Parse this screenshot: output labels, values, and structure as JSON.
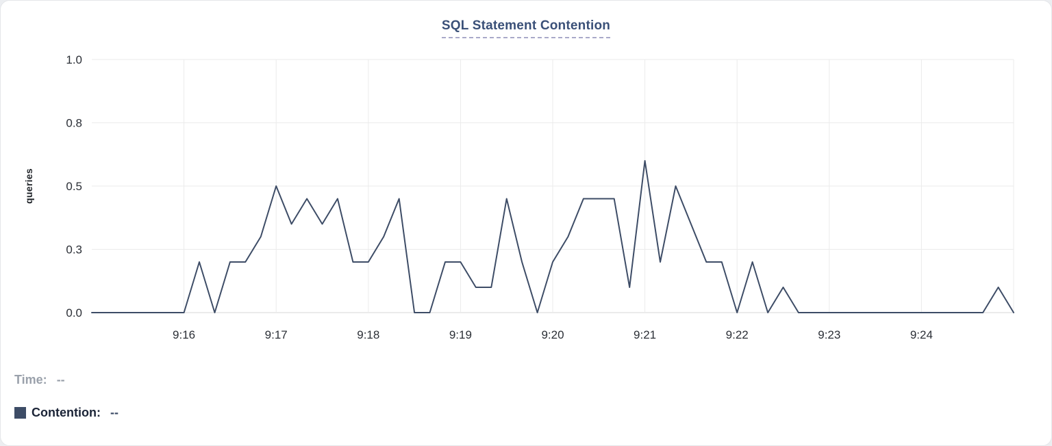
{
  "title": "SQL Statement Contention",
  "colors": {
    "line": "#3d4c66",
    "title": "#3a5078",
    "grid": "#ebebeb",
    "baseline": "#d7d7d7",
    "axis_text": "#2b2f36",
    "legend_time": "#9aa1ab",
    "legend_contention_label": "#1b2437",
    "legend_contention_value": "#3d4c66",
    "swatch": "#3d4c66"
  },
  "legend": {
    "time_label": "Time:",
    "time_value": "--",
    "contention_label": "Contention:",
    "contention_value": "--"
  },
  "chart_data": {
    "type": "line",
    "title": "SQL Statement Contention",
    "xlabel": "",
    "ylabel": "queries",
    "ylim": [
      0,
      1.0
    ],
    "y_ticks": [
      0,
      0.25,
      0.5,
      0.75,
      1.0
    ],
    "y_tick_labels": [
      "0.0",
      "0.3",
      "0.5",
      "0.8",
      "1.0"
    ],
    "x_ticks": [
      "9:16",
      "9:17",
      "9:18",
      "9:19",
      "9:20",
      "9:21",
      "9:22",
      "9:23",
      "9:24"
    ],
    "xlim": [
      "9:15:00",
      "9:25:00"
    ],
    "grid": true,
    "legend_position": "bottom-left",
    "series": [
      {
        "name": "Contention",
        "x": [
          "9:15:00",
          "9:15:10",
          "9:15:20",
          "9:15:30",
          "9:15:40",
          "9:15:50",
          "9:16:00",
          "9:16:10",
          "9:16:20",
          "9:16:30",
          "9:16:40",
          "9:16:50",
          "9:17:00",
          "9:17:10",
          "9:17:20",
          "9:17:30",
          "9:17:40",
          "9:17:50",
          "9:18:00",
          "9:18:10",
          "9:18:20",
          "9:18:30",
          "9:18:40",
          "9:18:50",
          "9:19:00",
          "9:19:10",
          "9:19:20",
          "9:19:30",
          "9:19:40",
          "9:19:50",
          "9:20:00",
          "9:20:10",
          "9:20:20",
          "9:20:30",
          "9:20:40",
          "9:20:50",
          "9:21:00",
          "9:21:10",
          "9:21:20",
          "9:21:30",
          "9:21:40",
          "9:21:50",
          "9:22:00",
          "9:22:10",
          "9:22:20",
          "9:22:30",
          "9:22:40",
          "9:22:50",
          "9:23:00",
          "9:23:10",
          "9:23:20",
          "9:23:30",
          "9:23:40",
          "9:23:50",
          "9:24:00",
          "9:24:10",
          "9:24:20",
          "9:24:30",
          "9:24:40",
          "9:24:50",
          "9:25:00"
        ],
        "values": [
          0,
          0,
          0,
          0,
          0,
          0,
          0,
          0.2,
          0,
          0.2,
          0.2,
          0.3,
          0.5,
          0.35,
          0.45,
          0.35,
          0.45,
          0.2,
          0.2,
          0.3,
          0.45,
          0,
          0,
          0.2,
          0.2,
          0.1,
          0.1,
          0.45,
          0.2,
          0,
          0.2,
          0.3,
          0.45,
          0.45,
          0.45,
          0.1,
          0.6,
          0.2,
          0.5,
          0.35,
          0.2,
          0.2,
          0,
          0.2,
          0,
          0.1,
          0,
          0,
          0,
          0,
          0,
          0,
          0,
          0,
          0,
          0,
          0,
          0,
          0,
          0.1,
          0
        ]
      }
    ]
  }
}
